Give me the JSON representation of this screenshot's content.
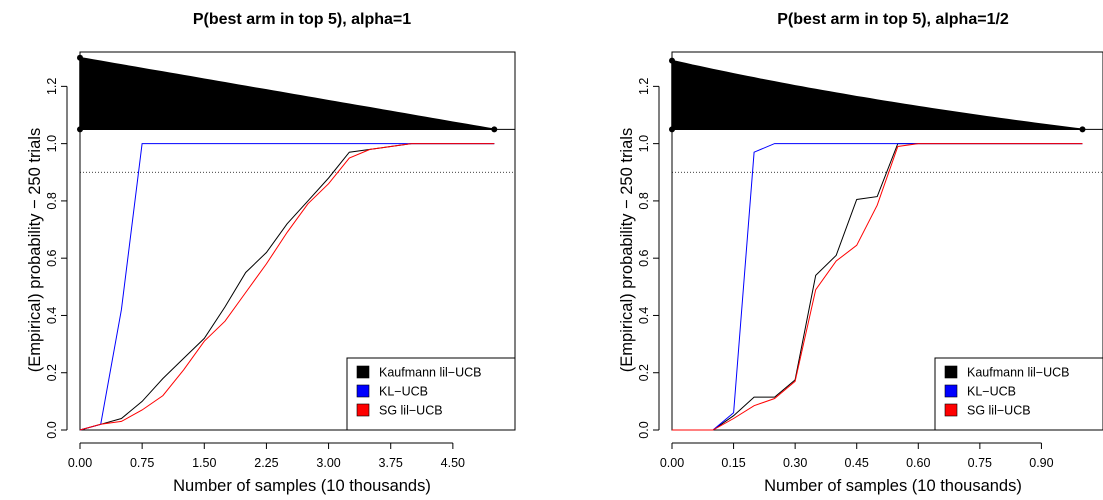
{
  "chart_data": [
    {
      "type": "line",
      "title": "P(best arm in top 5), alpha=1",
      "xlabel": "Number of samples (10 thousands)",
      "ylabel": "(Empirical) probability − 250 trials",
      "xlim": [
        0,
        5.25
      ],
      "ylim": [
        0,
        1.32
      ],
      "x_ticks": [
        "0.00",
        "0.75",
        "1.50",
        "2.25",
        "3.00",
        "3.75",
        "4.50"
      ],
      "y_ticks": [
        "0.0",
        "0.2",
        "0.4",
        "0.6",
        "0.8",
        "1.0",
        "1.2"
      ],
      "reference_lines": {
        "solid": 1.05,
        "dotted": 0.9
      },
      "wedge": {
        "type": "linear",
        "x_from": 0,
        "x_to": 5.0,
        "top_start": 1.3,
        "top_end": 1.05,
        "base": 1.05
      },
      "legend_position": "bottom-right",
      "series": [
        {
          "name": "Kaufmann lil−UCB",
          "color": "#000000",
          "x": [
            0,
            0.25,
            0.5,
            0.75,
            1.0,
            1.25,
            1.5,
            1.75,
            2.0,
            2.25,
            2.5,
            2.75,
            3.0,
            3.25,
            3.5,
            3.75,
            4.0,
            4.25,
            4.5,
            4.75,
            5.0
          ],
          "y": [
            0.0,
            0.02,
            0.04,
            0.1,
            0.18,
            0.25,
            0.32,
            0.43,
            0.55,
            0.62,
            0.72,
            0.8,
            0.88,
            0.97,
            0.98,
            0.99,
            1.0,
            1.0,
            1.0,
            1.0,
            1.0
          ]
        },
        {
          "name": "KL−UCB",
          "color": "#0000ff",
          "x": [
            0,
            0.25,
            0.5,
            0.75,
            1.0,
            1.25,
            1.5,
            1.75,
            2.0,
            2.25,
            2.5,
            2.75,
            3.0,
            3.25,
            3.5,
            3.75,
            4.0,
            4.25,
            4.5,
            4.75,
            5.0
          ],
          "y": [
            0.0,
            0.02,
            0.42,
            1.0,
            1.0,
            1.0,
            1.0,
            1.0,
            1.0,
            1.0,
            1.0,
            1.0,
            1.0,
            1.0,
            1.0,
            1.0,
            1.0,
            1.0,
            1.0,
            1.0,
            1.0
          ]
        },
        {
          "name": "SG lil−UCB",
          "color": "#ff0000",
          "x": [
            0,
            0.25,
            0.5,
            0.75,
            1.0,
            1.25,
            1.5,
            1.75,
            2.0,
            2.25,
            2.5,
            2.75,
            3.0,
            3.25,
            3.5,
            3.75,
            4.0,
            4.25,
            4.5,
            4.75,
            5.0
          ],
          "y": [
            0.0,
            0.02,
            0.03,
            0.07,
            0.12,
            0.21,
            0.31,
            0.38,
            0.48,
            0.58,
            0.69,
            0.79,
            0.86,
            0.95,
            0.98,
            0.99,
            1.0,
            1.0,
            1.0,
            1.0,
            1.0
          ]
        }
      ]
    },
    {
      "type": "line",
      "title": "P(best arm in top 5), alpha=1/2",
      "xlabel": "Number of samples (10 thousands)",
      "ylabel": "(Empirical) probability − 250 trials",
      "xlim": [
        0,
        1.05
      ],
      "ylim": [
        0,
        1.32
      ],
      "x_ticks": [
        "0.00",
        "0.15",
        "0.30",
        "0.45",
        "0.60",
        "0.75",
        "0.90"
      ],
      "y_ticks": [
        "0.0",
        "0.2",
        "0.4",
        "0.6",
        "0.8",
        "1.0",
        "1.2"
      ],
      "reference_lines": {
        "solid": 1.05,
        "dotted": 0.9
      },
      "wedge": {
        "type": "sqrt",
        "x_from": 0,
        "x_to": 1.0,
        "top_start": 1.29,
        "top_end": 1.05,
        "base": 1.05
      },
      "legend_position": "bottom-right",
      "series": [
        {
          "name": "Kaufmann lil−UCB",
          "color": "#000000",
          "x": [
            0,
            0.05,
            0.1,
            0.15,
            0.2,
            0.25,
            0.3,
            0.35,
            0.4,
            0.45,
            0.5,
            0.55,
            0.6,
            0.65,
            0.7,
            0.75,
            0.8,
            0.85,
            0.9,
            0.95,
            1.0
          ],
          "y": [
            0.0,
            0.0,
            0.0,
            0.05,
            0.115,
            0.115,
            0.175,
            0.54,
            0.61,
            0.805,
            0.815,
            1.0,
            1.0,
            1.0,
            1.0,
            1.0,
            1.0,
            1.0,
            1.0,
            1.0,
            1.0
          ]
        },
        {
          "name": "KL−UCB",
          "color": "#0000ff",
          "x": [
            0,
            0.05,
            0.1,
            0.15,
            0.2,
            0.25,
            0.3,
            0.35,
            0.4,
            0.45,
            0.5,
            0.55,
            0.6,
            0.65,
            0.7,
            0.75,
            0.8,
            0.85,
            0.9,
            0.95,
            1.0
          ],
          "y": [
            0.0,
            0.0,
            0.0,
            0.06,
            0.97,
            1.0,
            1.0,
            1.0,
            1.0,
            1.0,
            1.0,
            1.0,
            1.0,
            1.0,
            1.0,
            1.0,
            1.0,
            1.0,
            1.0,
            1.0,
            1.0
          ]
        },
        {
          "name": "SG lil−UCB",
          "color": "#ff0000",
          "x": [
            0,
            0.05,
            0.1,
            0.15,
            0.2,
            0.25,
            0.3,
            0.35,
            0.4,
            0.45,
            0.5,
            0.55,
            0.6,
            0.65,
            0.7,
            0.75,
            0.8,
            0.85,
            0.9,
            0.95,
            1.0
          ],
          "y": [
            0.0,
            0.0,
            0.0,
            0.04,
            0.085,
            0.11,
            0.17,
            0.49,
            0.59,
            0.645,
            0.785,
            0.99,
            1.0,
            1.0,
            1.0,
            1.0,
            1.0,
            1.0,
            1.0,
            1.0,
            1.0
          ]
        }
      ]
    }
  ]
}
